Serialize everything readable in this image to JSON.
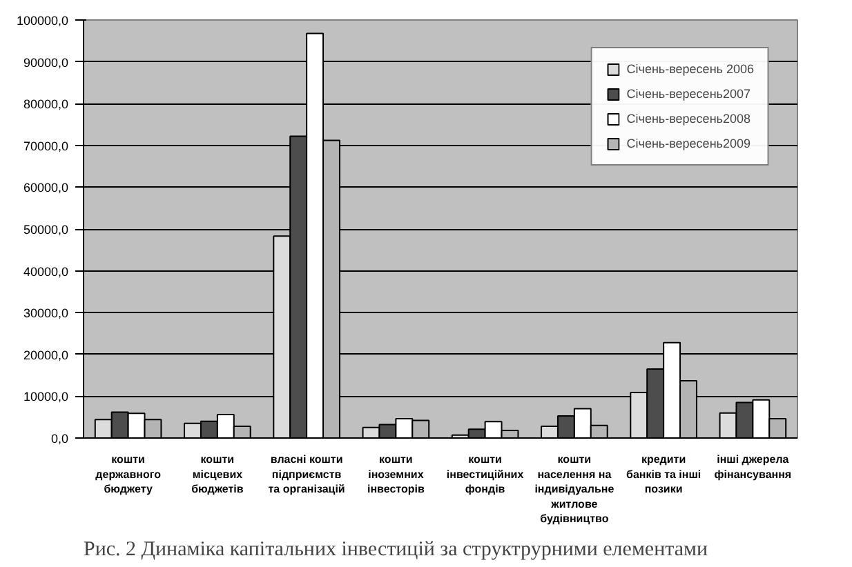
{
  "chart_data": {
    "type": "bar",
    "categories": [
      "кошти\nдержавного\nбюджету",
      "кошти\nмісцевих\nбюджетів",
      "власні кошти\nпідприємств\nта організацій",
      "кошти\nіноземних\nінвесторів",
      "кошти\nінвестиційних\nфондів",
      "кошти\nнаселення на\nіндивідуальне\nжитлове\nбудівництво",
      "кредити\nбанків та інші\nпозики",
      "інші джерела\nфінансування"
    ],
    "series": [
      {
        "name": "Січень-вересень 2006",
        "color": "#dcdcdc",
        "values": [
          4400,
          3500,
          48300,
          2500,
          700,
          2800,
          10900,
          6000
        ]
      },
      {
        "name": "Січень-вересень2007",
        "color": "#4d4d4d",
        "values": [
          6200,
          4000,
          72200,
          3200,
          2100,
          5300,
          16500,
          8500
        ]
      },
      {
        "name": "Січень-вересень2008",
        "color": "#ffffff",
        "values": [
          5900,
          5600,
          96800,
          4600,
          3900,
          7000,
          22800,
          9100
        ]
      },
      {
        "name": "Січень-вересень2009",
        "color": "#b4b4b4",
        "values": [
          4400,
          2800,
          71200,
          4200,
          1800,
          3000,
          13700,
          4600
        ]
      }
    ],
    "ylim": [
      0,
      100000
    ],
    "yticks": [
      {
        "value": 0,
        "label": "0,0"
      },
      {
        "value": 10000,
        "label": "10000,0"
      },
      {
        "value": 20000,
        "label": "20000,0"
      },
      {
        "value": 30000,
        "label": "30000,0"
      },
      {
        "value": 40000,
        "label": "40000,0"
      },
      {
        "value": 50000,
        "label": "50000,0"
      },
      {
        "value": 60000,
        "label": "60000,0"
      },
      {
        "value": 70000,
        "label": "70000,0"
      },
      {
        "value": 80000,
        "label": "80000,0"
      },
      {
        "value": 90000,
        "label": "90000,0"
      },
      {
        "value": 100000,
        "label": "100000,0"
      }
    ],
    "grid": "y",
    "legend": "top right",
    "annotations": [
      "Рис. 2 Динаміка капітальних інвестицій за структрурними елементами"
    ]
  }
}
